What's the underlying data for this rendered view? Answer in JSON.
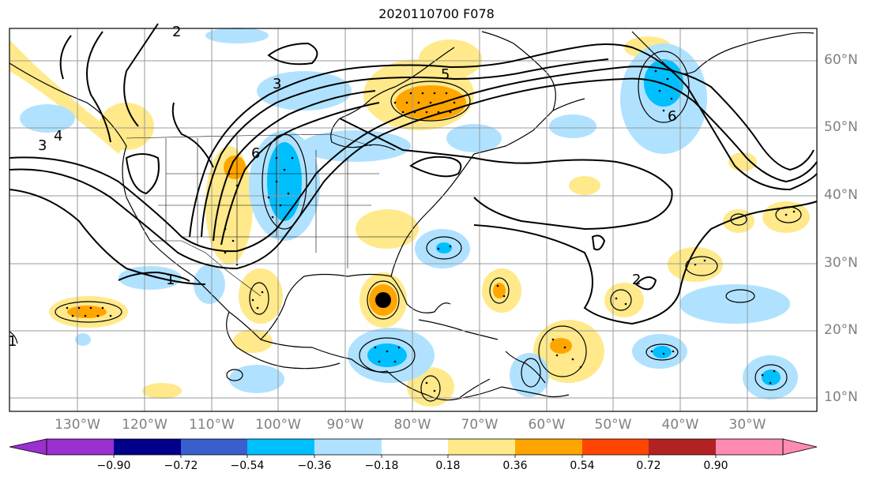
{
  "title": "2020110700 F078",
  "lat_labels": [
    "60°N",
    "50°N",
    "40°N",
    "30°N",
    "20°N",
    "10°N"
  ],
  "lon_labels": [
    "130°W",
    "120°W",
    "110°W",
    "100°W",
    "90°W",
    "80°W",
    "70°W",
    "60°W",
    "50°W",
    "40°W",
    "30°W"
  ],
  "colorbar": {
    "ticks": [
      "−0.90",
      "−0.72",
      "−0.54",
      "−0.36",
      "−0.18",
      "0.18",
      "0.36",
      "0.54",
      "0.72",
      "0.90"
    ],
    "colors": [
      "#9a30d0",
      "#00008b",
      "#3a5fcd",
      "#00bfff",
      "#b0e2ff",
      "#ffffff",
      "#ffe98a",
      "#ffa500",
      "#ff4500",
      "#b22222",
      "#ff8cb0"
    ]
  },
  "contour_labels": [
    "2",
    "3",
    "3",
    "4",
    "5",
    "6",
    "6",
    "1",
    "2",
    "1"
  ],
  "colors": {
    "positive_shade": "#ffe98a",
    "positive_strong": "#ffa500",
    "negative_shade": "#b0e2ff",
    "negative_strong": "#00bfff",
    "marker": "#000000"
  }
}
